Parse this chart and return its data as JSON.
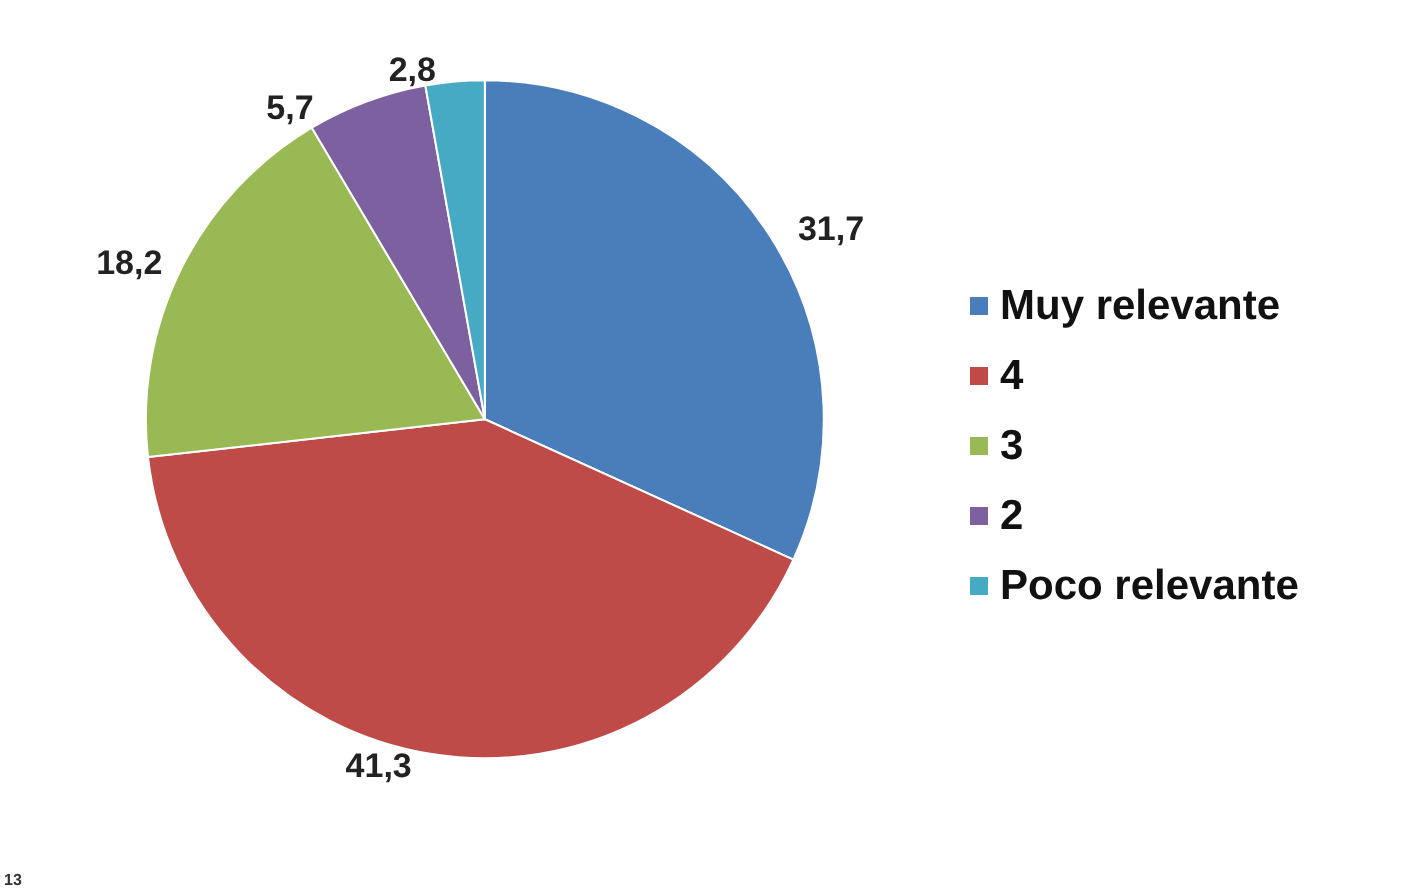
{
  "chart_data": {
    "type": "pie",
    "categories": [
      "Muy relevante",
      "4",
      "3",
      "2",
      "Poco relevante"
    ],
    "values": [
      31.7,
      41.3,
      18.2,
      5.7,
      2.8
    ],
    "value_labels": [
      "31,7",
      "41,3",
      "18,2",
      "5,7",
      "2,8"
    ],
    "colors": [
      "#4a7ebb",
      "#be4b48",
      "#98b954",
      "#7d60a0",
      "#46aac5"
    ],
    "legend": "right",
    "annotations": [
      "13"
    ]
  }
}
